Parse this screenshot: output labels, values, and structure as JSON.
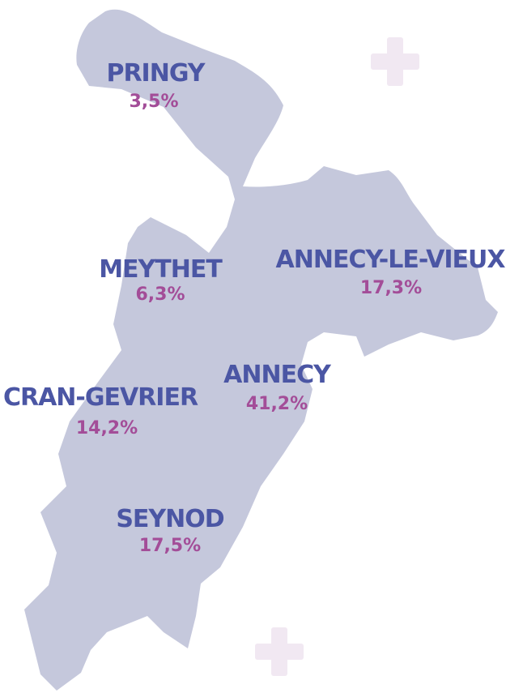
{
  "regions": [
    {
      "name": "PRINGY",
      "share": "3,5%"
    },
    {
      "name": "MEYTHET",
      "share": "6,3%"
    },
    {
      "name": "ANNECY-LE-VIEUX",
      "share": "17,3%"
    },
    {
      "name": "ANNECY",
      "share": "41,2%"
    },
    {
      "name": "CRAN-GEVRIER",
      "share": "14,2%"
    },
    {
      "name": "SEYNOD",
      "share": "17,5%"
    }
  ]
}
